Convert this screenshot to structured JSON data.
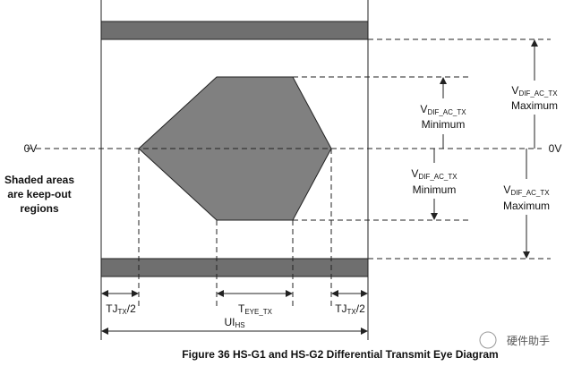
{
  "zero_left": "0V",
  "zero_right": "0V",
  "note": [
    "Shaded areas",
    "are keep-out",
    "regions"
  ],
  "labels": [
    {
      "main": "V",
      "sub": "DIF_AC_TX",
      "desc": "Minimum"
    },
    {
      "main": "V",
      "sub": "DIF_AC_TX",
      "desc": "Minimum"
    },
    {
      "main": "V",
      "sub": "DIF_AC_TX",
      "desc": "Maximum"
    },
    {
      "main": "V",
      "sub": "DIF_AC_TX",
      "desc": "Maximum"
    }
  ],
  "timing": [
    {
      "main": "TJ",
      "sub": "TX",
      "suffix": "/2"
    },
    {
      "main": "T",
      "sub": "EYE_TX"
    },
    {
      "main": "TJ",
      "sub": "TX",
      "suffix": "/2"
    },
    {
      "main": "UI",
      "sub": "HS"
    }
  ],
  "caption": "Figure 36    HS-G1 and HS-G2 Differential Transmit Eye Diagram",
  "watermark": "硬件助手"
}
